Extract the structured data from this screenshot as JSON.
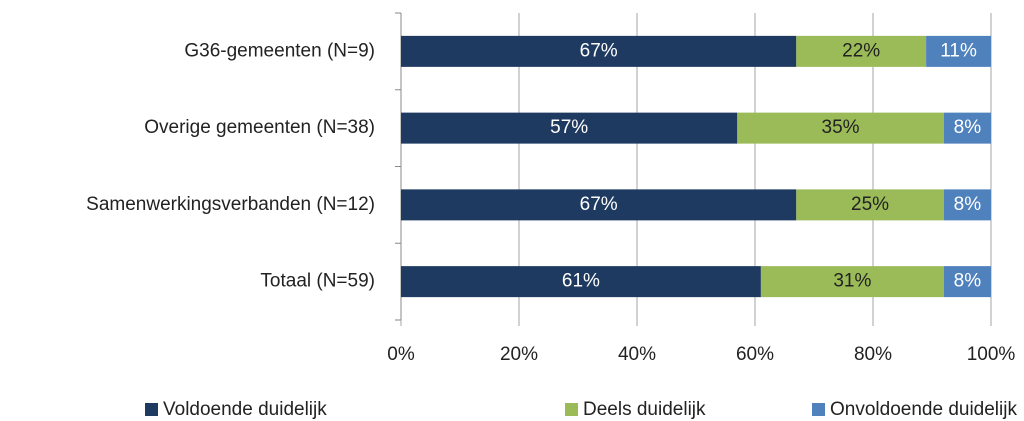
{
  "chart_data": {
    "type": "stacked_bar_horizontal",
    "categories": [
      "G36-gemeenten (N=9)",
      "Overige gemeenten (N=38)",
      "Samenwerkingsverbanden (N=12)",
      "Totaal (N=59)"
    ],
    "series": [
      {
        "name": "Voldoende duidelijk",
        "color": "#1f3a60",
        "values": [
          67,
          57,
          67,
          61
        ],
        "value_labels": [
          "67%",
          "57%",
          "67%",
          "61%"
        ]
      },
      {
        "name": "Deels duidelijk",
        "color": "#9bbb59",
        "values": [
          22,
          35,
          25,
          31
        ],
        "value_labels": [
          "22%",
          "35%",
          "25%",
          "31%"
        ]
      },
      {
        "name": "Onvoldoende duidelijk",
        "color": "#4f81bd",
        "values": [
          11,
          8,
          8,
          8
        ],
        "value_labels": [
          "11%",
          "8%",
          "8%",
          "8%"
        ]
      }
    ],
    "xlim": [
      0,
      100
    ],
    "xticks": [
      {
        "value": 0,
        "label": "0%"
      },
      {
        "value": 20,
        "label": "20%"
      },
      {
        "value": 40,
        "label": "40%"
      },
      {
        "value": 60,
        "label": "60%"
      },
      {
        "value": 80,
        "label": "80%"
      },
      {
        "value": 100,
        "label": "100%"
      }
    ],
    "grid": true,
    "legend": "bottom"
  }
}
